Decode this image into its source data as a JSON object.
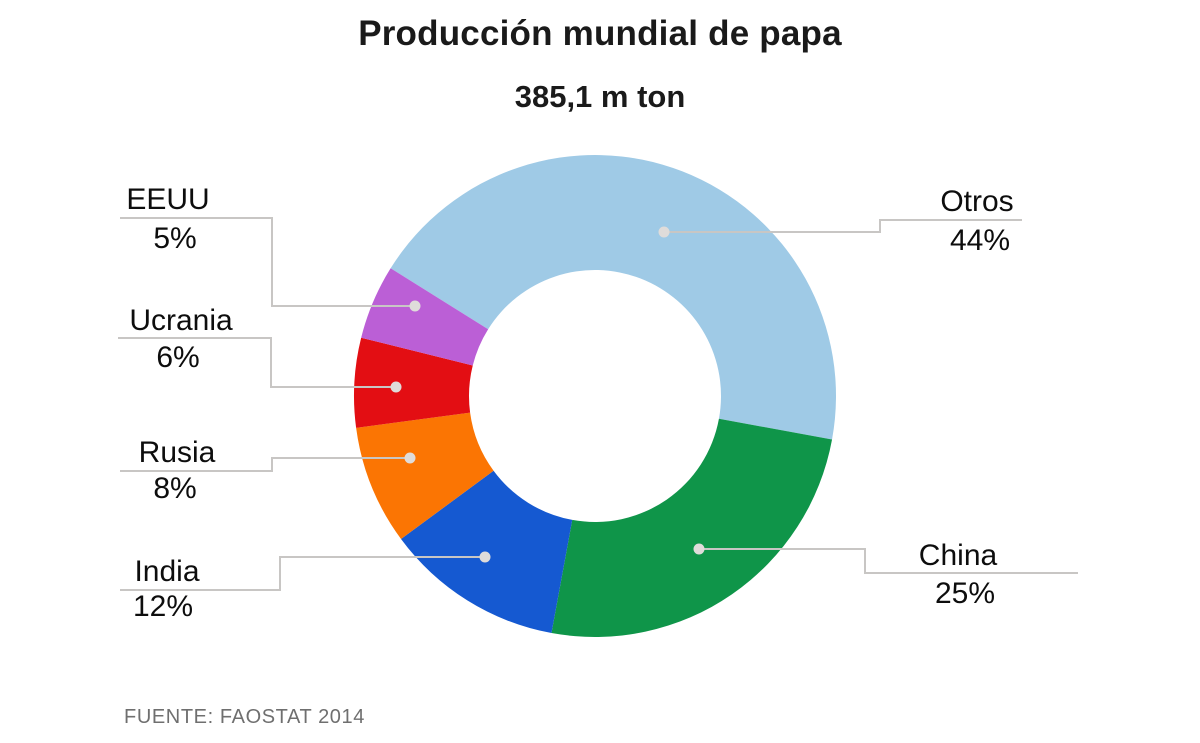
{
  "page": {
    "title": "Producción mundial de papa",
    "subtitle": "385,1 m ton",
    "source": "FUENTE: FAOSTAT 2014"
  },
  "chart_data": {
    "type": "pie",
    "subtype": "donut",
    "title": "Producción mundial de papa",
    "total_label": "385,1 m ton",
    "unit": "%",
    "source": "FUENTE: FAOSTAT 2014",
    "legend_position": "callout-labels",
    "segments": [
      {
        "label": "Otros",
        "value": 44,
        "display": "44%",
        "color": "#9FCAE6"
      },
      {
        "label": "China",
        "value": 25,
        "display": "25%",
        "color": "#0F9549"
      },
      {
        "label": "India",
        "value": 12,
        "display": "12%",
        "color": "#1559D1"
      },
      {
        "label": "Rusia",
        "value": 8,
        "display": "8%",
        "color": "#FB7503"
      },
      {
        "label": "Ucrania",
        "value": 6,
        "display": "6%",
        "color": "#E30E13"
      },
      {
        "label": "EEUU",
        "value": 5,
        "display": "5%",
        "color": "#BB5FD6"
      }
    ]
  }
}
